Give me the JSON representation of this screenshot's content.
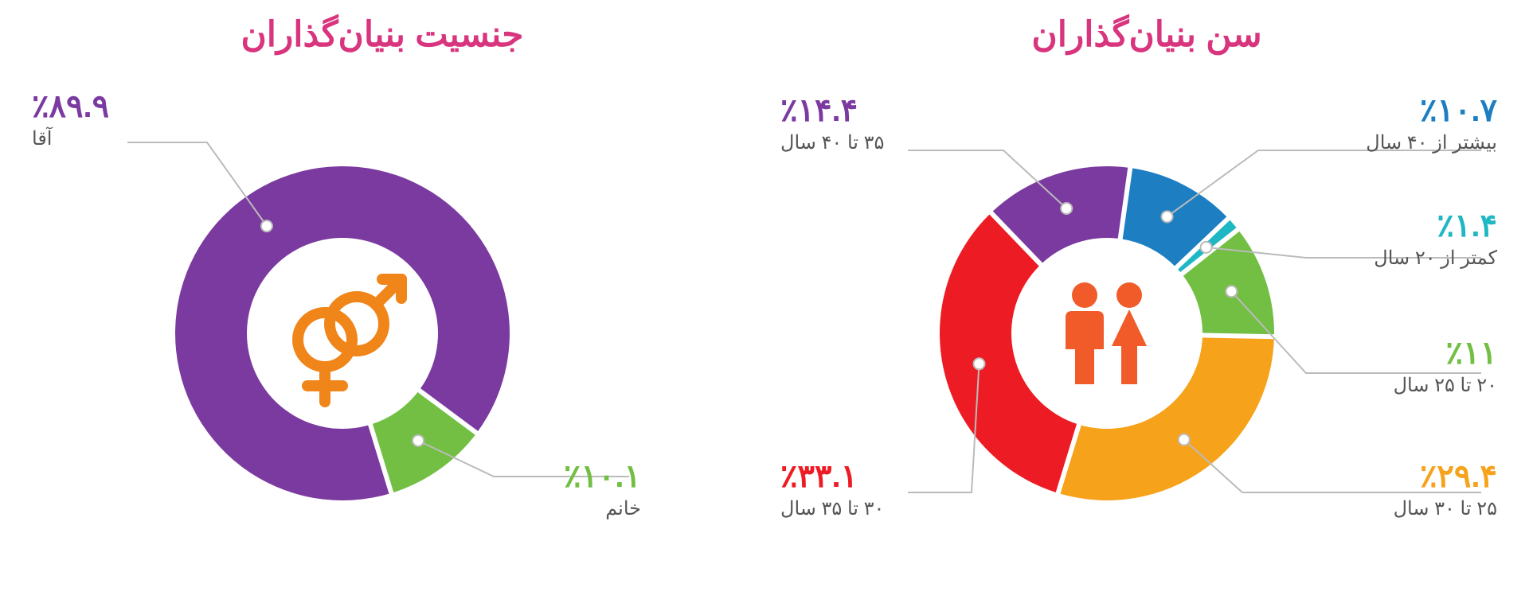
{
  "background_color": "#ffffff",
  "title_color": "#d9357e",
  "label_sub_color": "#555555",
  "leader_color": "#bbbbbb",
  "gender": {
    "title": "جنسیت بنیان‌گذاران",
    "type": "donut",
    "donut_outer_r": 210,
    "donut_inner_r": 120,
    "center_icon": "gender-symbols",
    "center_icon_color": "#f08519",
    "segments": [
      {
        "label": "آقا",
        "value_text": "٪۸۹.۹",
        "value": 89.9,
        "color": "#7b3aa0"
      },
      {
        "label": "خانم",
        "value_text": "٪۱۰.۱",
        "value": 10.1,
        "color": "#72bf44"
      }
    ]
  },
  "age": {
    "title": "سن بنیان‌گذاران",
    "type": "donut",
    "donut_outer_r": 210,
    "donut_inner_r": 120,
    "center_icon": "people",
    "center_icon_color": "#f15a29",
    "segments": [
      {
        "label": "بیشتر از ۴۰ سال",
        "value_text": "٪۱۰.۷",
        "value": 10.7,
        "color": "#1d7ec2"
      },
      {
        "label": "کمتر از ۲۰ سال",
        "value_text": "٪۱.۴",
        "value": 1.4,
        "color": "#1fb7c4"
      },
      {
        "label": "۲۰ تا ۲۵ سال",
        "value_text": "٪۱۱",
        "value": 11.0,
        "color": "#72bf44"
      },
      {
        "label": "۲۵ تا ۳۰ سال",
        "value_text": "٪۲۹.۴",
        "value": 29.4,
        "color": "#f6a21b"
      },
      {
        "label": "۳۰ تا ۳۵ سال",
        "value_text": "٪۳۳.۱",
        "value": 33.1,
        "color": "#ed1c24"
      },
      {
        "label": "۳۵ تا ۴۰ سال",
        "value_text": "٪۱۴.۴",
        "value": 14.4,
        "color": "#7b3aa0"
      }
    ]
  }
}
